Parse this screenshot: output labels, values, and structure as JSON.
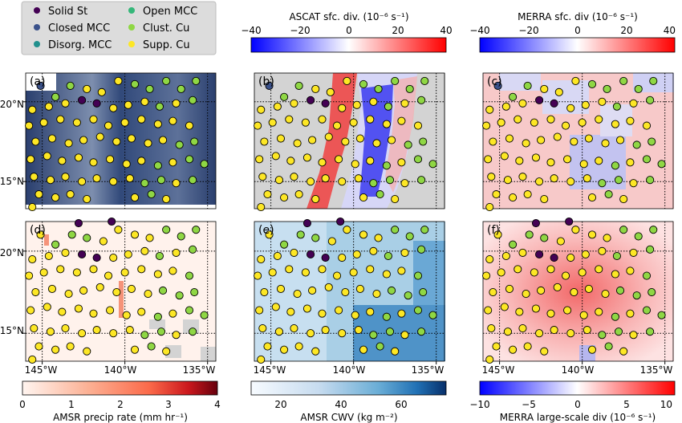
{
  "legend": {
    "items": [
      {
        "label": "Solid St",
        "color": "#440154"
      },
      {
        "label": "Closed MCC",
        "color": "#3b528b"
      },
      {
        "label": "Disorg. MCC",
        "color": "#21908d"
      },
      {
        "label": "Open MCC",
        "color": "#35b779"
      },
      {
        "label": "Clust. Cu",
        "color": "#8fd744"
      },
      {
        "label": "Supp. Cu",
        "color": "#fde725"
      }
    ]
  },
  "panels": [
    {
      "id": "a",
      "label": "(a)"
    },
    {
      "id": "b",
      "label": "(b)"
    },
    {
      "id": "c",
      "label": "(c)"
    },
    {
      "id": "d",
      "label": "(d)"
    },
    {
      "id": "e",
      "label": "(e)"
    },
    {
      "id": "f",
      "label": "(f)"
    }
  ],
  "y_tick_labels": [
    "20°N",
    "15°N"
  ],
  "x_tick_labels": [
    "145°W",
    "140°W",
    "135°W"
  ],
  "colorbars": {
    "ascat": {
      "title": "ASCAT sfc. div. (10⁻⁶ s⁻¹)",
      "ticks": [
        "−40",
        "−20",
        "0",
        "20",
        "40"
      ],
      "range": [
        -40,
        40
      ]
    },
    "merra_sfc": {
      "title": "MERRA sfc. div (10⁻⁶ s⁻¹)",
      "ticks": [
        "−40",
        "−20",
        "0",
        "20",
        "40"
      ],
      "range": [
        -40,
        40
      ]
    },
    "amsr_precip": {
      "title": "AMSR precip rate (mm hr⁻¹)",
      "ticks": [
        "0",
        "1",
        "2",
        "3",
        "4"
      ],
      "range": [
        0,
        4
      ]
    },
    "amsr_cwv": {
      "title": "AMSR CWV (kg m⁻²)",
      "ticks": [
        "20",
        "40",
        "60"
      ],
      "range": [
        10,
        75
      ]
    },
    "merra_ls": {
      "title": "MERRA large-scale div (10⁻⁶ s⁻¹)",
      "ticks": [
        "−10",
        "−5",
        "0",
        "5",
        "10"
      ],
      "range": [
        -10,
        10
      ]
    }
  },
  "chart_data": {
    "type": "scatter",
    "title": "",
    "xlabel": "",
    "ylabel": "",
    "xlim": [
      -146,
      -134.5
    ],
    "ylim": [
      13.3,
      21.8
    ],
    "x_ticks": [
      -145,
      -140,
      -135
    ],
    "y_ticks": [
      15,
      20
    ],
    "grid": "dotted lines at 20N, 15N, 140W",
    "points_top": [
      {
        "lon": -145.1,
        "lat": 21.0,
        "class": "Closed MCC"
      },
      {
        "lon": -144.2,
        "lat": 20.3,
        "class": "Clust. Cu"
      },
      {
        "lon": -143.3,
        "lat": 21.0,
        "class": "Clust. Cu"
      },
      {
        "lon": -142.3,
        "lat": 20.8,
        "class": "Supp. Cu"
      },
      {
        "lon": -141.4,
        "lat": 20.6,
        "class": "Supp. Cu"
      },
      {
        "lon": -140.4,
        "lat": 21.3,
        "class": "Supp. Cu"
      },
      {
        "lon": -139.4,
        "lat": 21.1,
        "class": "Clust. Cu"
      },
      {
        "lon": -138.5,
        "lat": 20.8,
        "class": "Clust. Cu"
      },
      {
        "lon": -137.5,
        "lat": 21.3,
        "class": "Clust. Cu"
      },
      {
        "lon": -136.6,
        "lat": 20.8,
        "class": "Clust. Cu"
      },
      {
        "lon": -135.7,
        "lat": 21.3,
        "class": "Clust. Cu"
      },
      {
        "lon": -145.6,
        "lat": 19.5,
        "class": "Supp. Cu"
      },
      {
        "lon": -144.6,
        "lat": 19.7,
        "class": "Supp. Cu"
      },
      {
        "lon": -143.6,
        "lat": 19.9,
        "class": "Supp. Cu"
      },
      {
        "lon": -142.6,
        "lat": 20.1,
        "class": "Solid St"
      },
      {
        "lon": -141.7,
        "lat": 19.9,
        "class": "Solid St"
      },
      {
        "lon": -140.7,
        "lat": 19.6,
        "class": "Supp. Cu"
      },
      {
        "lon": -139.8,
        "lat": 19.8,
        "class": "Supp. Cu"
      },
      {
        "lon": -138.8,
        "lat": 20.0,
        "class": "Supp. Cu"
      },
      {
        "lon": -137.9,
        "lat": 19.7,
        "class": "Clust. Cu"
      },
      {
        "lon": -136.9,
        "lat": 19.9,
        "class": "Supp. Cu"
      },
      {
        "lon": -135.9,
        "lat": 20.1,
        "class": "Clust. Cu"
      },
      {
        "lon": -145.8,
        "lat": 18.5,
        "class": "Supp. Cu"
      },
      {
        "lon": -144.9,
        "lat": 18.7,
        "class": "Supp. Cu"
      },
      {
        "lon": -143.9,
        "lat": 18.9,
        "class": "Supp. Cu"
      },
      {
        "lon": -142.9,
        "lat": 18.7,
        "class": "Supp. Cu"
      },
      {
        "lon": -141.9,
        "lat": 18.9,
        "class": "Supp. Cu"
      },
      {
        "lon": -141.0,
        "lat": 18.5,
        "class": "Supp. Cu"
      },
      {
        "lon": -140.0,
        "lat": 18.7,
        "class": "Supp. Cu"
      },
      {
        "lon": -139.0,
        "lat": 18.9,
        "class": "Supp. Cu"
      },
      {
        "lon": -138.0,
        "lat": 18.6,
        "class": "Supp. Cu"
      },
      {
        "lon": -137.1,
        "lat": 18.8,
        "class": "Supp. Cu"
      },
      {
        "lon": -136.1,
        "lat": 18.5,
        "class": "Supp. Cu"
      },
      {
        "lon": -145.4,
        "lat": 17.5,
        "class": "Supp. Cu"
      },
      {
        "lon": -144.4,
        "lat": 17.7,
        "class": "Supp. Cu"
      },
      {
        "lon": -143.4,
        "lat": 17.4,
        "class": "Supp. Cu"
      },
      {
        "lon": -142.5,
        "lat": 17.6,
        "class": "Supp. Cu"
      },
      {
        "lon": -141.5,
        "lat": 17.8,
        "class": "Supp. Cu"
      },
      {
        "lon": -140.5,
        "lat": 17.5,
        "class": "Supp. Cu"
      },
      {
        "lon": -139.6,
        "lat": 17.7,
        "class": "Supp. Cu"
      },
      {
        "lon": -138.6,
        "lat": 17.4,
        "class": "Supp. Cu"
      },
      {
        "lon": -137.7,
        "lat": 17.6,
        "class": "Supp. Cu"
      },
      {
        "lon": -136.7,
        "lat": 17.3,
        "class": "Clust. Cu"
      },
      {
        "lon": -135.8,
        "lat": 17.5,
        "class": "Clust. Cu"
      },
      {
        "lon": -145.7,
        "lat": 16.4,
        "class": "Supp. Cu"
      },
      {
        "lon": -144.7,
        "lat": 16.6,
        "class": "Supp. Cu"
      },
      {
        "lon": -143.8,
        "lat": 16.3,
        "class": "Supp. Cu"
      },
      {
        "lon": -142.8,
        "lat": 16.5,
        "class": "Supp. Cu"
      },
      {
        "lon": -141.9,
        "lat": 16.2,
        "class": "Supp. Cu"
      },
      {
        "lon": -140.9,
        "lat": 16.4,
        "class": "Supp. Cu"
      },
      {
        "lon": -139.9,
        "lat": 16.1,
        "class": "Supp. Cu"
      },
      {
        "lon": -139.0,
        "lat": 16.3,
        "class": "Supp. Cu"
      },
      {
        "lon": -138.0,
        "lat": 16.0,
        "class": "Clust. Cu"
      },
      {
        "lon": -137.1,
        "lat": 16.2,
        "class": "Supp. Cu"
      },
      {
        "lon": -136.1,
        "lat": 16.4,
        "class": "Clust. Cu"
      },
      {
        "lon": -135.2,
        "lat": 16.1,
        "class": "Clust. Cu"
      },
      {
        "lon": -145.5,
        "lat": 15.3,
        "class": "Supp. Cu"
      },
      {
        "lon": -144.5,
        "lat": 15.1,
        "class": "Supp. Cu"
      },
      {
        "lon": -143.6,
        "lat": 15.3,
        "class": "Supp. Cu"
      },
      {
        "lon": -142.6,
        "lat": 15.0,
        "class": "Supp. Cu"
      },
      {
        "lon": -141.7,
        "lat": 15.2,
        "class": "Supp. Cu"
      },
      {
        "lon": -140.7,
        "lat": 15.0,
        "class": "Supp. Cu"
      },
      {
        "lon": -139.7,
        "lat": 15.2,
        "class": "Supp. Cu"
      },
      {
        "lon": -138.8,
        "lat": 14.9,
        "class": "Clust. Cu"
      },
      {
        "lon": -137.8,
        "lat": 15.1,
        "class": "Clust. Cu"
      },
      {
        "lon": -136.9,
        "lat": 14.9,
        "class": "Supp. Cu"
      },
      {
        "lon": -135.9,
        "lat": 15.1,
        "class": "Clust. Cu"
      },
      {
        "lon": -145.2,
        "lat": 14.2,
        "class": "Supp. Cu"
      },
      {
        "lon": -144.2,
        "lat": 14.0,
        "class": "Supp. Cu"
      },
      {
        "lon": -143.3,
        "lat": 14.2,
        "class": "Supp. Cu"
      },
      {
        "lon": -142.3,
        "lat": 13.9,
        "class": "Supp. Cu"
      },
      {
        "lon": -139.4,
        "lat": 14.0,
        "class": "Supp. Cu"
      },
      {
        "lon": -138.4,
        "lat": 14.2,
        "class": "Clust. Cu"
      },
      {
        "lon": -137.5,
        "lat": 13.9,
        "class": "Supp. Cu"
      },
      {
        "lon": -145.6,
        "lat": 13.4,
        "class": "Supp. Cu"
      }
    ],
    "points_bottom": [
      {
        "lon": -142.8,
        "lat": 21.7,
        "class": "Solid St"
      },
      {
        "lon": -140.8,
        "lat": 21.8,
        "class": "Solid St"
      },
      {
        "lon": -145.1,
        "lat": 21.0,
        "class": "Supp. Cu"
      },
      {
        "lon": -144.2,
        "lat": 20.4,
        "class": "Clust. Cu"
      },
      {
        "lon": -143.2,
        "lat": 21.0,
        "class": "Clust. Cu"
      },
      {
        "lon": -142.3,
        "lat": 20.8,
        "class": "Clust. Cu"
      },
      {
        "lon": -141.3,
        "lat": 20.6,
        "class": "Supp. Cu"
      },
      {
        "lon": -140.4,
        "lat": 21.3,
        "class": "Supp. Cu"
      },
      {
        "lon": -139.4,
        "lat": 21.0,
        "class": "Supp. Cu"
      },
      {
        "lon": -138.5,
        "lat": 20.8,
        "class": "Supp. Cu"
      },
      {
        "lon": -137.5,
        "lat": 21.3,
        "class": "Clust. Cu"
      },
      {
        "lon": -136.6,
        "lat": 20.9,
        "class": "Clust. Cu"
      },
      {
        "lon": -135.7,
        "lat": 21.3,
        "class": "Clust. Cu"
      },
      {
        "lon": -145.6,
        "lat": 19.5,
        "class": "Supp. Cu"
      },
      {
        "lon": -144.6,
        "lat": 19.7,
        "class": "Supp. Cu"
      },
      {
        "lon": -143.6,
        "lat": 19.9,
        "class": "Supp. Cu"
      },
      {
        "lon": -142.6,
        "lat": 19.8,
        "class": "Solid St"
      },
      {
        "lon": -141.7,
        "lat": 19.6,
        "class": "Solid St"
      },
      {
        "lon": -140.7,
        "lat": 19.6,
        "class": "Supp. Cu"
      },
      {
        "lon": -139.8,
        "lat": 19.8,
        "class": "Supp. Cu"
      },
      {
        "lon": -138.8,
        "lat": 20.0,
        "class": "Supp. Cu"
      },
      {
        "lon": -137.9,
        "lat": 19.7,
        "class": "Clust. Cu"
      },
      {
        "lon": -136.9,
        "lat": 19.9,
        "class": "Supp. Cu"
      },
      {
        "lon": -135.9,
        "lat": 20.1,
        "class": "Clust. Cu"
      },
      {
        "lon": -145.8,
        "lat": 18.5,
        "class": "Supp. Cu"
      },
      {
        "lon": -144.9,
        "lat": 18.7,
        "class": "Supp. Cu"
      },
      {
        "lon": -143.9,
        "lat": 18.9,
        "class": "Supp. Cu"
      },
      {
        "lon": -142.9,
        "lat": 18.7,
        "class": "Supp. Cu"
      },
      {
        "lon": -141.9,
        "lat": 18.9,
        "class": "Supp. Cu"
      },
      {
        "lon": -141.0,
        "lat": 18.5,
        "class": "Supp. Cu"
      },
      {
        "lon": -140.0,
        "lat": 18.7,
        "class": "Supp. Cu"
      },
      {
        "lon": -139.0,
        "lat": 18.9,
        "class": "Supp. Cu"
      },
      {
        "lon": -138.0,
        "lat": 18.6,
        "class": "Supp. Cu"
      },
      {
        "lon": -137.1,
        "lat": 18.8,
        "class": "Supp. Cu"
      },
      {
        "lon": -136.1,
        "lat": 18.5,
        "class": "Clust. Cu"
      },
      {
        "lon": -145.4,
        "lat": 17.5,
        "class": "Supp. Cu"
      },
      {
        "lon": -144.4,
        "lat": 17.7,
        "class": "Supp. Cu"
      },
      {
        "lon": -143.4,
        "lat": 17.4,
        "class": "Supp. Cu"
      },
      {
        "lon": -142.5,
        "lat": 17.6,
        "class": "Supp. Cu"
      },
      {
        "lon": -141.5,
        "lat": 17.8,
        "class": "Supp. Cu"
      },
      {
        "lon": -140.5,
        "lat": 17.5,
        "class": "Supp. Cu"
      },
      {
        "lon": -139.6,
        "lat": 17.7,
        "class": "Supp. Cu"
      },
      {
        "lon": -138.6,
        "lat": 17.4,
        "class": "Supp. Cu"
      },
      {
        "lon": -137.7,
        "lat": 17.6,
        "class": "Clust. Cu"
      },
      {
        "lon": -136.7,
        "lat": 17.3,
        "class": "Clust. Cu"
      },
      {
        "lon": -135.8,
        "lat": 17.5,
        "class": "Clust. Cu"
      },
      {
        "lon": -145.7,
        "lat": 16.4,
        "class": "Supp. Cu"
      },
      {
        "lon": -144.7,
        "lat": 16.6,
        "class": "Supp. Cu"
      },
      {
        "lon": -143.8,
        "lat": 16.3,
        "class": "Supp. Cu"
      },
      {
        "lon": -142.8,
        "lat": 16.5,
        "class": "Supp. Cu"
      },
      {
        "lon": -141.9,
        "lat": 16.2,
        "class": "Supp. Cu"
      },
      {
        "lon": -140.9,
        "lat": 16.4,
        "class": "Supp. Cu"
      },
      {
        "lon": -139.9,
        "lat": 16.1,
        "class": "Supp. Cu"
      },
      {
        "lon": -139.0,
        "lat": 16.3,
        "class": "Supp. Cu"
      },
      {
        "lon": -138.0,
        "lat": 16.0,
        "class": "Clust. Cu"
      },
      {
        "lon": -137.1,
        "lat": 16.2,
        "class": "Supp. Cu"
      },
      {
        "lon": -136.1,
        "lat": 16.4,
        "class": "Clust. Cu"
      },
      {
        "lon": -135.2,
        "lat": 16.1,
        "class": "Clust. Cu"
      },
      {
        "lon": -145.5,
        "lat": 15.3,
        "class": "Supp. Cu"
      },
      {
        "lon": -144.5,
        "lat": 15.1,
        "class": "Supp. Cu"
      },
      {
        "lon": -143.6,
        "lat": 15.3,
        "class": "Supp. Cu"
      },
      {
        "lon": -142.6,
        "lat": 15.0,
        "class": "Supp. Cu"
      },
      {
        "lon": -141.7,
        "lat": 15.2,
        "class": "Supp. Cu"
      },
      {
        "lon": -140.7,
        "lat": 15.0,
        "class": "Supp. Cu"
      },
      {
        "lon": -139.7,
        "lat": 15.2,
        "class": "Supp. Cu"
      },
      {
        "lon": -138.8,
        "lat": 14.9,
        "class": "Clust. Cu"
      },
      {
        "lon": -137.8,
        "lat": 15.1,
        "class": "Clust. Cu"
      },
      {
        "lon": -136.9,
        "lat": 14.9,
        "class": "Supp. Cu"
      },
      {
        "lon": -135.9,
        "lat": 15.1,
        "class": "Clust. Cu"
      },
      {
        "lon": -145.2,
        "lat": 14.2,
        "class": "Supp. Cu"
      },
      {
        "lon": -144.2,
        "lat": 14.0,
        "class": "Supp. Cu"
      },
      {
        "lon": -143.3,
        "lat": 14.2,
        "class": "Supp. Cu"
      },
      {
        "lon": -142.3,
        "lat": 13.9,
        "class": "Supp. Cu"
      },
      {
        "lon": -139.4,
        "lat": 14.0,
        "class": "Supp. Cu"
      },
      {
        "lon": -138.4,
        "lat": 14.2,
        "class": "Clust. Cu"
      },
      {
        "lon": -137.5,
        "lat": 13.9,
        "class": "Supp. Cu"
      },
      {
        "lon": -145.6,
        "lat": 13.4,
        "class": "Supp. Cu"
      }
    ]
  }
}
